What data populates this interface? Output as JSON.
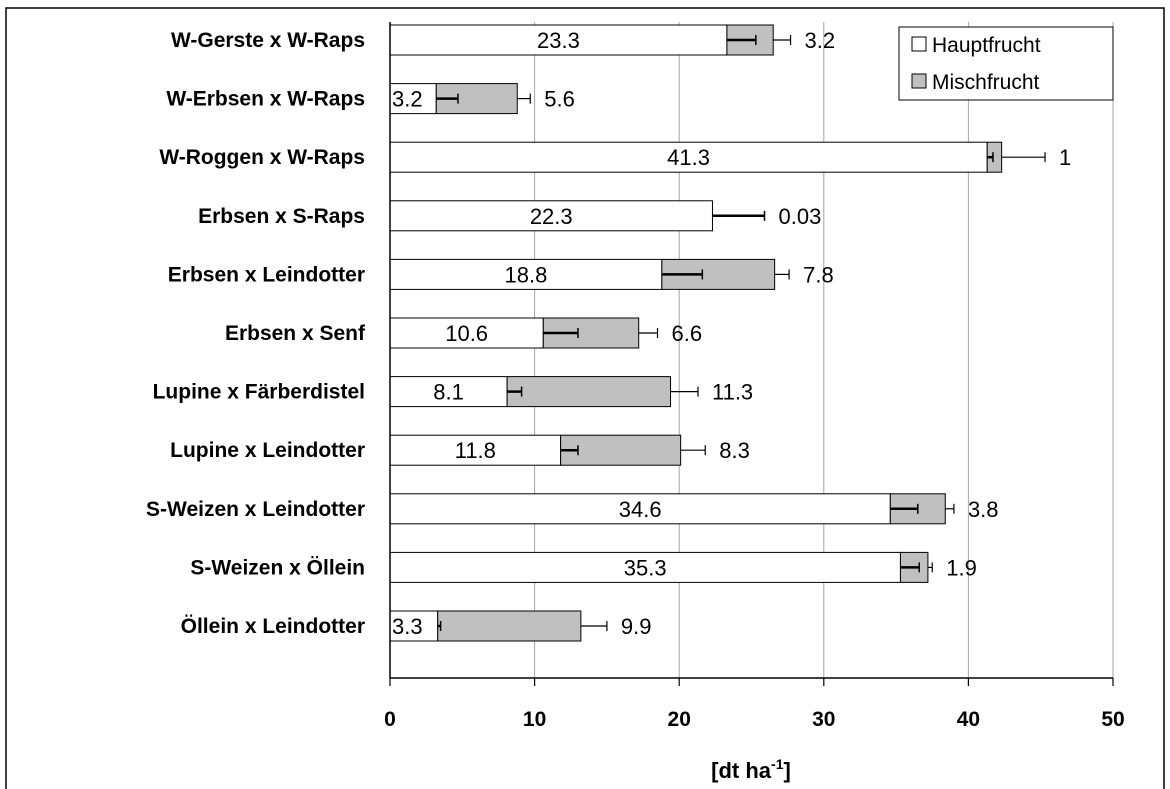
{
  "chart_data": {
    "type": "bar",
    "orientation": "horizontal",
    "stacked": true,
    "categories": [
      "W-Gerste x W-Raps",
      "W-Erbsen x W-Raps",
      "W-Roggen x W-Raps",
      "Erbsen x S-Raps",
      "Erbsen x Leindotter",
      "Erbsen x Senf",
      "Lupine x Färberdistel",
      "Lupine x Leindotter",
      "S-Weizen x Leindotter",
      "S-Weizen x Öllein",
      "Öllein x Leindotter"
    ],
    "series": [
      {
        "name": "Hauptfrucht",
        "color": "#ffffff",
        "values": [
          23.3,
          3.2,
          41.3,
          22.3,
          18.8,
          10.6,
          8.1,
          11.8,
          34.6,
          35.3,
          3.3
        ],
        "labels": [
          "23.3",
          "3.2",
          "41.3",
          "22.3",
          "18.8",
          "10.6",
          "8.1",
          "11.8",
          "34.6",
          "35.3",
          "3.3"
        ],
        "error": [
          2.0,
          1.5,
          0.4,
          3.6,
          2.8,
          2.4,
          1.0,
          1.2,
          1.9,
          1.3,
          0.2
        ]
      },
      {
        "name": "Mischfrucht",
        "color": "#c0c0c0",
        "values": [
          3.2,
          5.6,
          1,
          0.03,
          7.8,
          6.6,
          11.3,
          8.3,
          3.8,
          1.9,
          9.9
        ],
        "labels": [
          "3.2",
          "5.6",
          "1",
          "0.03",
          "7.8",
          "6.6",
          "11.3",
          "8.3",
          "3.8",
          "1.9",
          "9.9"
        ],
        "error": [
          1.2,
          0.9,
          3.0,
          0,
          1.0,
          1.3,
          1.9,
          1.7,
          0.6,
          0.3,
          1.8
        ]
      }
    ],
    "xlim": [
      0,
      50
    ],
    "xticks": [
      "0",
      "10",
      "20",
      "30",
      "40",
      "50"
    ],
    "xlabel": "[dt ha",
    "xlabel_sup": "-1",
    "xlabel_end": "]",
    "grid": "vertical",
    "legend": "top-right"
  }
}
